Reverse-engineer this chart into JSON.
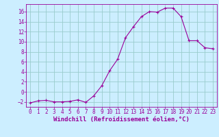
{
  "x": [
    0,
    1,
    2,
    3,
    4,
    5,
    6,
    7,
    8,
    9,
    10,
    11,
    12,
    13,
    14,
    15,
    16,
    17,
    18,
    19,
    20,
    21,
    22,
    23
  ],
  "y": [
    -2.2,
    -1.8,
    -1.7,
    -2.0,
    -2.0,
    -1.9,
    -1.6,
    -2.1,
    -0.8,
    1.2,
    4.2,
    6.5,
    10.8,
    13.0,
    15.0,
    16.0,
    15.9,
    16.7,
    16.7,
    15.0,
    10.2,
    10.2,
    8.8,
    8.6
  ],
  "line_color": "#990099",
  "marker": "+",
  "bg_color": "#cceeff",
  "grid_color": "#99cccc",
  "axis_color": "#990099",
  "xlabel": "Windchill (Refroidissement éolien,°C)",
  "ylim": [
    -3,
    17.5
  ],
  "xlim": [
    -0.5,
    23.5
  ],
  "yticks": [
    -2,
    0,
    2,
    4,
    6,
    8,
    10,
    12,
    14,
    16
  ],
  "xticks": [
    0,
    1,
    2,
    3,
    4,
    5,
    6,
    7,
    8,
    9,
    10,
    11,
    12,
    13,
    14,
    15,
    16,
    17,
    18,
    19,
    20,
    21,
    22,
    23
  ],
  "label_fontsize": 6.5,
  "tick_fontsize": 5.5
}
